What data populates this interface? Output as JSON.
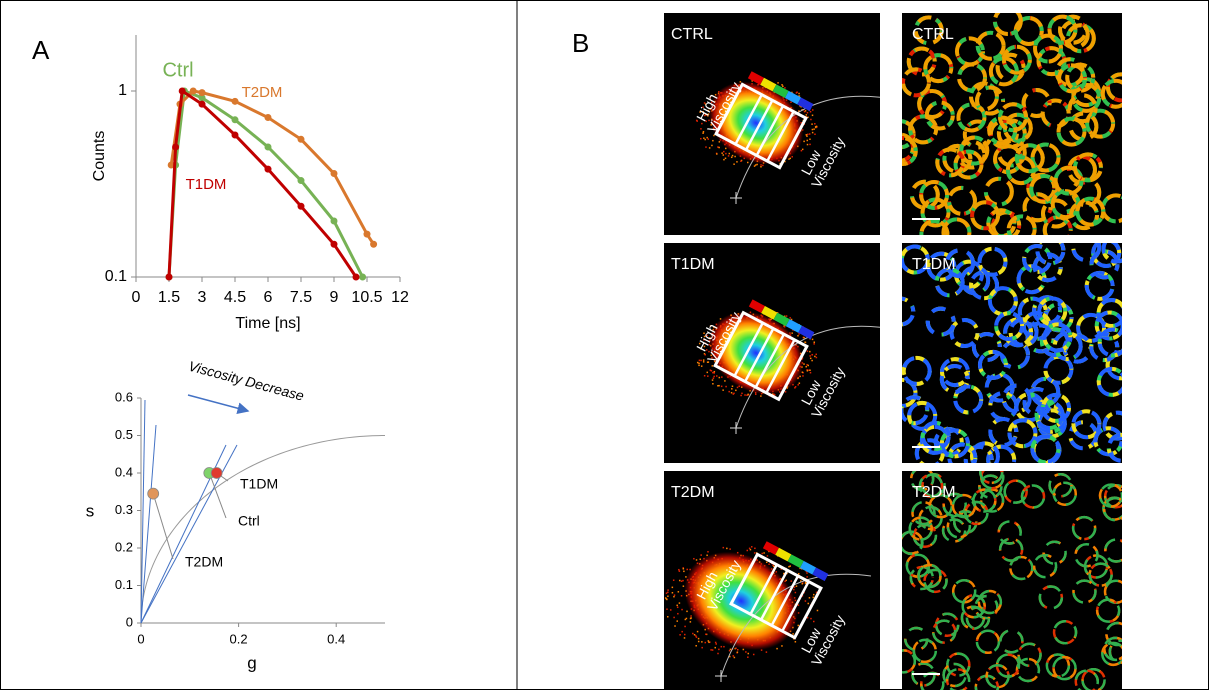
{
  "panels": {
    "a": "A",
    "b": "B"
  },
  "chart_data": [
    {
      "type": "line",
      "log_y": true,
      "xlabel": "Time [ns]",
      "ylabel": "Counts",
      "xlim": [
        0,
        12
      ],
      "xticks": [
        0,
        1.5,
        3,
        4.5,
        6,
        7.5,
        9,
        10.5,
        12
      ],
      "ylim": [
        0.1,
        2
      ],
      "yticks": [
        0.1,
        1
      ],
      "series": [
        {
          "name": "Ctrl",
          "color": "#77b255",
          "x": [
            1.5,
            1.8,
            2.2,
            3,
            4.5,
            6,
            7.5,
            9,
            10.3
          ],
          "values": [
            0.1,
            0.4,
            1,
            0.92,
            0.7,
            0.5,
            0.33,
            0.2,
            0.1
          ]
        },
        {
          "name": "T2DM",
          "color": "#d9782d",
          "x": [
            1.6,
            2.0,
            2.6,
            3,
            4.5,
            6,
            7.5,
            9,
            10.5,
            10.8
          ],
          "values": [
            0.4,
            0.85,
            1,
            0.98,
            0.88,
            0.72,
            0.55,
            0.36,
            0.17,
            0.15
          ]
        },
        {
          "name": "T1DM",
          "color": "#c00000",
          "x": [
            1.5,
            1.8,
            2.1,
            3,
            4.5,
            6,
            7.5,
            9,
            10
          ],
          "values": [
            0.1,
            0.5,
            1,
            0.85,
            0.58,
            0.38,
            0.24,
            0.15,
            0.1
          ]
        }
      ]
    },
    {
      "type": "scatter",
      "xlabel": "g",
      "ylabel": "s",
      "annotation": "Viscosity Decrease",
      "xlim": [
        0,
        0.5
      ],
      "xticks": [
        0,
        0.2,
        0.4
      ],
      "ylim": [
        0,
        0.6
      ],
      "yticks": [
        0,
        0.1,
        0.2,
        0.3,
        0.4,
        0.5,
        0.6
      ],
      "points": [
        {
          "name": "Ctrl",
          "color": "#7fd36a",
          "x": 0.14,
          "y": 0.4
        },
        {
          "name": "T1DM",
          "color": "#e03a2f",
          "x": 0.155,
          "y": 0.4
        },
        {
          "name": "T2DM",
          "color": "#e0955a",
          "x": 0.025,
          "y": 0.345
        }
      ]
    }
  ],
  "images": [
    {
      "phasor_label": "CTRL",
      "image_label": "CTRL",
      "high": [
        "High",
        "Viscosity"
      ],
      "low": [
        "Low",
        "Viscosity"
      ]
    },
    {
      "phasor_label": "T1DM",
      "image_label": "T1DM",
      "high": [
        "High",
        "Viscosity"
      ],
      "low": [
        "Low",
        "Viscosity"
      ]
    },
    {
      "phasor_label": "T2DM",
      "image_label": "T2DM",
      "high": [
        "High",
        "Viscosity"
      ],
      "low": [
        "Low",
        "Viscosity"
      ]
    }
  ]
}
